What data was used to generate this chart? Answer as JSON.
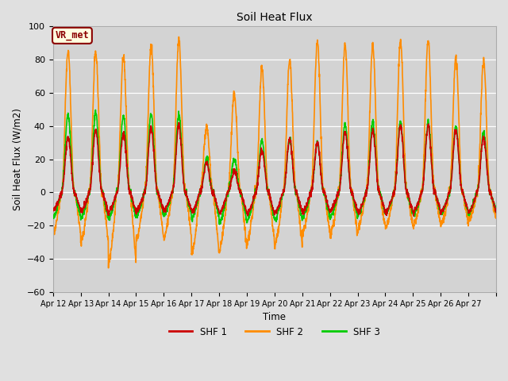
{
  "title": "Soil Heat Flux",
  "xlabel": "Time",
  "ylabel": "Soil Heat Flux (W/m2)",
  "ylim": [
    -60,
    100
  ],
  "background_color": "#e0e0e0",
  "axes_facecolor": "#d3d3d3",
  "grid_color": "white",
  "series": {
    "SHF 1": {
      "color": "#cc0000",
      "lw": 1.2
    },
    "SHF 2": {
      "color": "#ff8c00",
      "lw": 1.2
    },
    "SHF 3": {
      "color": "#00cc00",
      "lw": 1.2
    }
  },
  "x_tick_labels": [
    "Apr 12",
    "Apr 13",
    "Apr 14",
    "Apr 15",
    "Apr 16",
    "Apr 17",
    "Apr 18",
    "Apr 19",
    "Apr 20",
    "Apr 21",
    "Apr 22",
    "Apr 23",
    "Apr 24",
    "Apr 25",
    "Apr 26",
    "Apr 27"
  ],
  "yticks": [
    -60,
    -40,
    -20,
    0,
    20,
    40,
    60,
    80,
    100
  ],
  "annotation_text": "VR_met",
  "annotation_color": "#8b0000",
  "annotation_bg": "#ffffe0",
  "n_days": 16,
  "pts_per_day": 144,
  "peaks_shf1": [
    33,
    37,
    36,
    39,
    40,
    18,
    13,
    25,
    32,
    30,
    36,
    37,
    40,
    40,
    38,
    33
  ],
  "peaks_shf2": [
    85,
    85,
    82,
    88,
    92,
    40,
    60,
    75,
    80,
    91,
    89,
    88,
    92,
    92,
    81,
    80
  ],
  "peaks_shf3": [
    47,
    48,
    46,
    47,
    47,
    20,
    20,
    31,
    32,
    30,
    41,
    42,
    42,
    42,
    40,
    36
  ],
  "troughs_shf1": [
    -11,
    -12,
    -12,
    -11,
    -11,
    -12,
    -13,
    -13,
    -12,
    -12,
    -11,
    -12,
    -12,
    -12,
    -12,
    -12
  ],
  "troughs_shf2": [
    -25,
    -30,
    -43,
    -28,
    -27,
    -37,
    -35,
    -30,
    -32,
    -25,
    -26,
    -22,
    -21,
    -20,
    -20,
    -17
  ],
  "troughs_shf3": [
    -15,
    -16,
    -16,
    -14,
    -14,
    -16,
    -18,
    -17,
    -17,
    -15,
    -15,
    -13,
    -13,
    -13,
    -13,
    -12
  ]
}
